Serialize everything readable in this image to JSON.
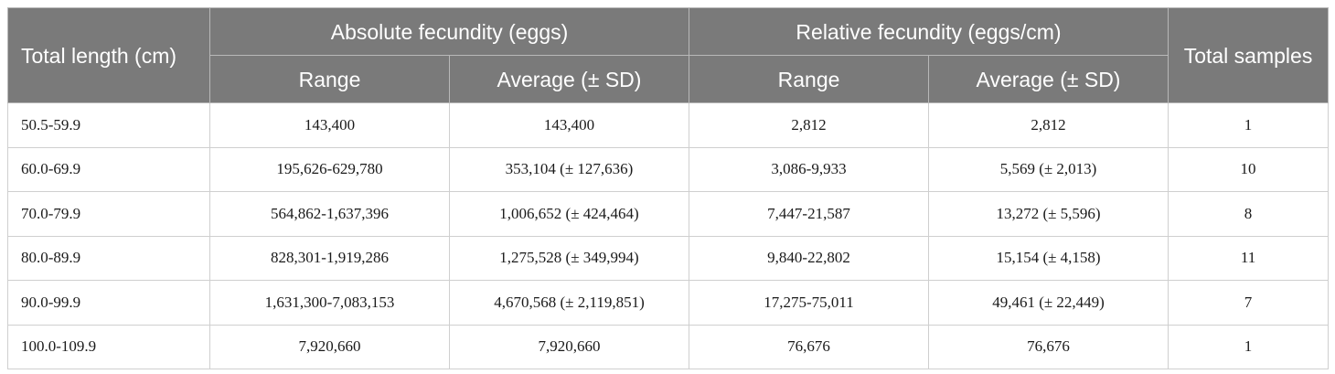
{
  "table": {
    "header": {
      "total_length": "Total length (cm)",
      "absolute_fecundity": "Absolute fecundity (eggs)",
      "relative_fecundity": "Relative fecundity (eggs/cm)",
      "total_samples": "Total samples",
      "range_1": "Range",
      "average_1": "Average (± SD)",
      "range_2": "Range",
      "average_2": "Average (± SD)"
    },
    "rows": [
      {
        "length": "50.5-59.9",
        "abs_range": "143,400",
        "abs_avg": "143,400",
        "rel_range": "2,812",
        "rel_avg": "2,812",
        "samples": "1"
      },
      {
        "length": "60.0-69.9",
        "abs_range": "195,626-629,780",
        "abs_avg": "353,104 (± 127,636)",
        "rel_range": "3,086-9,933",
        "rel_avg": "5,569 (± 2,013)",
        "samples": "10"
      },
      {
        "length": "70.0-79.9",
        "abs_range": "564,862-1,637,396",
        "abs_avg": "1,006,652 (± 424,464)",
        "rel_range": "7,447-21,587",
        "rel_avg": "13,272 (± 5,596)",
        "samples": "8"
      },
      {
        "length": "80.0-89.9",
        "abs_range": "828,301-1,919,286",
        "abs_avg": "1,275,528 (± 349,994)",
        "rel_range": "9,840-22,802",
        "rel_avg": "15,154 (± 4,158)",
        "samples": "11"
      },
      {
        "length": "90.0-99.9",
        "abs_range": "1,631,300-7,083,153",
        "abs_avg": "4,670,568 (± 2,119,851)",
        "rel_range": "17,275-75,011",
        "rel_avg": "49,461 (± 22,449)",
        "samples": "7"
      },
      {
        "length": "100.0-109.9",
        "abs_range": "7,920,660",
        "abs_avg": "7,920,660",
        "rel_range": "76,676",
        "rel_avg": "76,676",
        "samples": "1"
      }
    ]
  }
}
